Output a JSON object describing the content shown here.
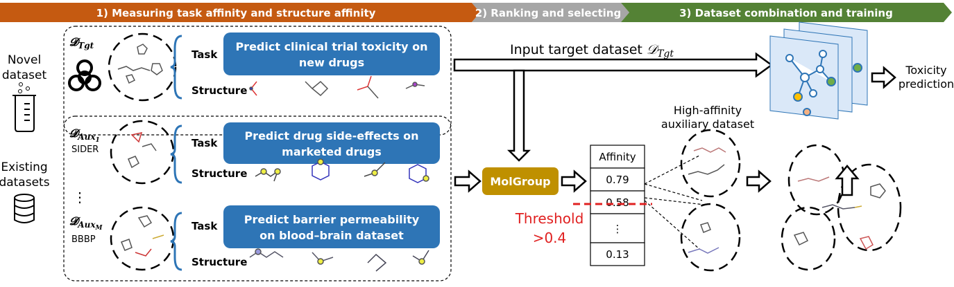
{
  "header": {
    "stage1": "1) Measuring task affinity and structure affinity",
    "stage2": "2) Ranking and selecting",
    "stage3": "3) Dataset combination and training",
    "colors": {
      "stage1": "#c55a11",
      "stage2": "#a6a6a6",
      "stage3": "#548235"
    }
  },
  "left": {
    "novel": [
      "Novel",
      "dataset"
    ],
    "existing": [
      "Existing",
      "datasets"
    ],
    "icons": [
      "beaker-icon",
      "database-icon",
      "biohazard-icon"
    ]
  },
  "target": {
    "symbol": "𝓓",
    "subscript": "Tgt",
    "task_label": "Task",
    "task_text": [
      "Predict clinical trial toxicity on",
      "new drugs"
    ],
    "structure_label": "Structure"
  },
  "aux1": {
    "symbol": "𝓓",
    "subscript": "Aux",
    "subsub": "1",
    "name": "SIDER",
    "task_label": "Task",
    "task_text": [
      "Predict drug side-effects on",
      "marketed drugs"
    ],
    "structure_label": "Structure"
  },
  "ellipsis": "⋮",
  "auxM": {
    "symbol": "𝓓",
    "subscript": "Aux",
    "subsub": "M",
    "name": "BBBP",
    "task_label": "Task",
    "task_text": [
      "Predict barrier permeability",
      "on blood–brain dataset"
    ],
    "structure_label": "Structure"
  },
  "middle": {
    "input_label": "Input target dataset ",
    "input_symbol": "𝒟",
    "input_sub": "Tgt",
    "molgroup": "MolGroup",
    "molgroup_color": "#bf9000",
    "table_header": "Affinity",
    "affinities": [
      "0.79",
      "0.58",
      "⋮",
      "0.13"
    ],
    "threshold": [
      "Threshold",
      ">0.4"
    ],
    "threshold_color": "#e02020"
  },
  "right": {
    "high_affinity": [
      "High-affinity",
      "auxiliary dataset"
    ],
    "output": [
      "Toxicity",
      "prediction"
    ]
  }
}
